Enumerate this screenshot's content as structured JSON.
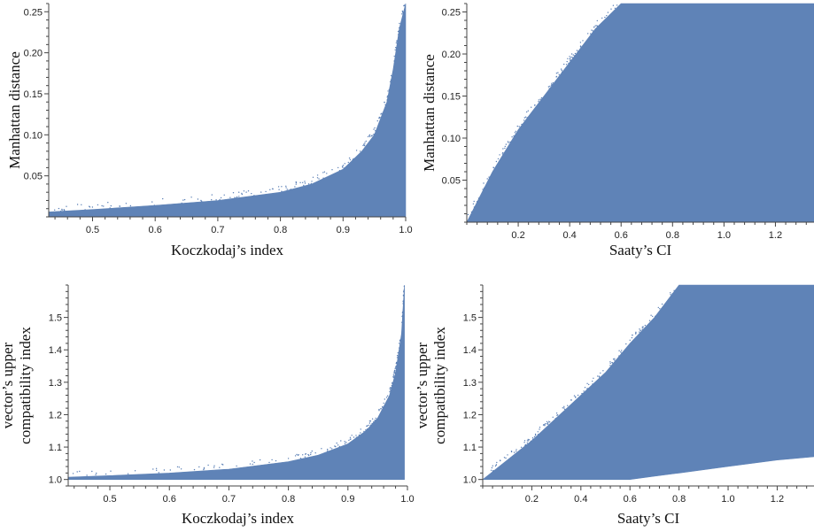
{
  "figure": {
    "fill_color": "#5a7fb5",
    "background": "#ffffff"
  },
  "chart_data": [
    {
      "type": "scatter",
      "xlabel": "Koczkodaj’s index",
      "ylabel": "Manhattan distance",
      "xlim": [
        0.43,
        1.0
      ],
      "ylim": [
        0.0,
        0.26
      ],
      "xticks": [
        0.5,
        0.6,
        0.7,
        0.8,
        0.9,
        1.0
      ],
      "xtick_labels": [
        "0.5",
        "0.6",
        "0.7",
        "0.8",
        "0.9",
        "1.0"
      ],
      "yticks": [
        0.05,
        0.1,
        0.15,
        0.2,
        0.25
      ],
      "ytick_labels": [
        "0.05",
        "0.10",
        "0.15",
        "0.20",
        "0.25"
      ],
      "envelope": {
        "x": [
          0.43,
          0.5,
          0.6,
          0.7,
          0.8,
          0.85,
          0.9,
          0.93,
          0.95,
          0.97,
          0.98,
          0.99,
          1.0
        ],
        "upper": [
          0.006,
          0.009,
          0.014,
          0.02,
          0.03,
          0.04,
          0.058,
          0.08,
          0.1,
          0.14,
          0.18,
          0.23,
          0.26
        ],
        "lower": [
          0.0,
          0.0,
          0.0,
          0.0,
          0.0,
          0.0,
          0.0,
          0.0,
          0.0,
          0.0,
          0.0,
          0.0,
          0.0
        ]
      },
      "grid": false,
      "legend": "none"
    },
    {
      "type": "scatter",
      "xlabel": "Saaty’s CI",
      "ylabel": "Manhattan distance",
      "xlim": [
        0.0,
        1.35
      ],
      "ylim": [
        0.0,
        0.26
      ],
      "xticks": [
        0.2,
        0.4,
        0.6,
        0.8,
        1.0,
        1.2
      ],
      "xtick_labels": [
        "0.2",
        "0.4",
        "0.6",
        "0.8",
        "1.0",
        "1.2"
      ],
      "yticks": [
        0.05,
        0.1,
        0.15,
        0.2,
        0.25
      ],
      "ytick_labels": [
        "0.05",
        "0.10",
        "0.15",
        "0.20",
        "0.25"
      ],
      "envelope": {
        "x": [
          0.0,
          0.1,
          0.2,
          0.3,
          0.4,
          0.5,
          0.6,
          0.8,
          1.0,
          1.2,
          1.35
        ],
        "upper": [
          0.0,
          0.06,
          0.11,
          0.15,
          0.19,
          0.23,
          0.26,
          0.26,
          0.26,
          0.26,
          0.26
        ],
        "lower": [
          0.0,
          0.0,
          0.0,
          0.0,
          0.0,
          0.0,
          0.0,
          0.0,
          0.0,
          0.0,
          0.0
        ]
      },
      "grid": false,
      "legend": "none"
    },
    {
      "type": "scatter",
      "xlabel": "Koczkodaj’s index",
      "ylabel": "vector’s upper\ncompatibility index",
      "xlim": [
        0.43,
        1.0
      ],
      "ylim": [
        0.98,
        1.6
      ],
      "xticks": [
        0.5,
        0.6,
        0.7,
        0.8,
        0.9,
        1.0
      ],
      "xtick_labels": [
        "0.5",
        "0.6",
        "0.7",
        "0.8",
        "0.9",
        "1.0"
      ],
      "yticks": [
        1.0,
        1.1,
        1.2,
        1.3,
        1.4,
        1.5
      ],
      "ytick_labels": [
        "1.0",
        "1.1",
        "1.2",
        "1.3",
        "1.4",
        "1.5"
      ],
      "envelope": {
        "x": [
          0.43,
          0.5,
          0.6,
          0.7,
          0.8,
          0.85,
          0.9,
          0.93,
          0.95,
          0.97,
          0.98,
          0.99,
          0.995
        ],
        "upper": [
          1.007,
          1.012,
          1.02,
          1.032,
          1.055,
          1.075,
          1.11,
          1.15,
          1.19,
          1.26,
          1.33,
          1.45,
          1.6
        ],
        "lower": [
          1.0,
          1.0,
          1.0,
          1.0,
          1.0,
          1.0,
          1.0,
          1.0,
          1.0,
          1.0,
          1.0,
          1.0,
          1.0
        ]
      },
      "grid": false,
      "legend": "none"
    },
    {
      "type": "scatter",
      "xlabel": "Saaty’s CI",
      "ylabel": "vector’s upper\ncompatibility index",
      "xlim": [
        0.0,
        1.35
      ],
      "ylim": [
        0.98,
        1.6
      ],
      "xticks": [
        0.2,
        0.4,
        0.6,
        0.8,
        1.0,
        1.2
      ],
      "xtick_labels": [
        "0.2",
        "0.4",
        "0.6",
        "0.8",
        "1.0",
        "1.2"
      ],
      "yticks": [
        1.0,
        1.1,
        1.2,
        1.3,
        1.4,
        1.5
      ],
      "ytick_labels": [
        "1.0",
        "1.1",
        "1.2",
        "1.3",
        "1.4",
        "1.5"
      ],
      "envelope": {
        "x": [
          0.0,
          0.1,
          0.2,
          0.3,
          0.4,
          0.5,
          0.6,
          0.7,
          0.8,
          1.0,
          1.2,
          1.35
        ],
        "upper": [
          1.0,
          1.06,
          1.12,
          1.19,
          1.26,
          1.33,
          1.42,
          1.5,
          1.6,
          1.6,
          1.6,
          1.6
        ],
        "lower": [
          1.0,
          1.0,
          1.0,
          1.0,
          1.0,
          1.0,
          1.0,
          1.01,
          1.02,
          1.04,
          1.06,
          1.07
        ]
      },
      "grid": false,
      "legend": "none"
    }
  ]
}
